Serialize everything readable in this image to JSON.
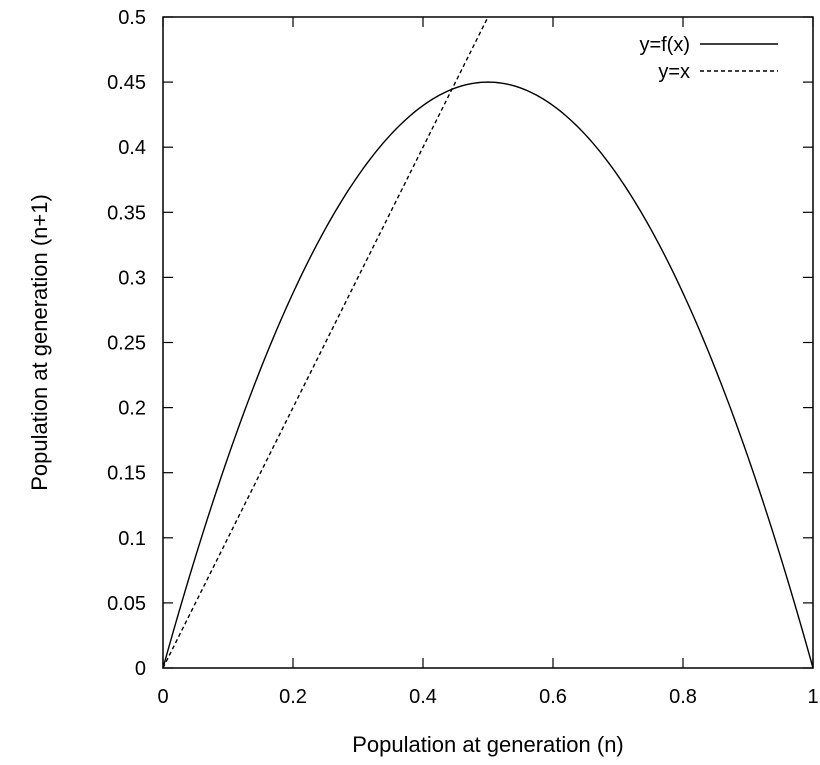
{
  "chart_data": {
    "type": "line",
    "title": "",
    "xlabel": "Population at generation (n)",
    "ylabel": "Population at generation (n+1)",
    "xlim": [
      0,
      1
    ],
    "ylim": [
      0,
      0.5
    ],
    "x_ticks": [
      "0",
      "0.2",
      "0.4",
      "0.6",
      "0.8",
      "1"
    ],
    "y_ticks": [
      "0",
      "0.05",
      "0.1",
      "0.15",
      "0.2",
      "0.25",
      "0.3",
      "0.35",
      "0.4",
      "0.45",
      "0.5"
    ],
    "grid": false,
    "legend_position": "top-right",
    "series": [
      {
        "name": "y=f(x)",
        "style": "solid",
        "color": "#000000",
        "x": [
          0,
          0.05,
          0.1,
          0.15,
          0.2,
          0.25,
          0.3,
          0.35,
          0.4,
          0.45,
          0.5,
          0.55,
          0.6,
          0.65,
          0.7,
          0.75,
          0.8,
          0.85,
          0.9,
          0.95,
          1.0
        ],
        "y": [
          0,
          0.0855,
          0.162,
          0.2295,
          0.288,
          0.3375,
          0.378,
          0.4095,
          0.432,
          0.4455,
          0.45,
          0.4455,
          0.432,
          0.4095,
          0.378,
          0.3375,
          0.288,
          0.2295,
          0.162,
          0.0855,
          0
        ]
      },
      {
        "name": "y=x",
        "style": "dashed",
        "color": "#000000",
        "x": [
          0,
          0.5
        ],
        "y": [
          0,
          0.5
        ]
      }
    ]
  }
}
